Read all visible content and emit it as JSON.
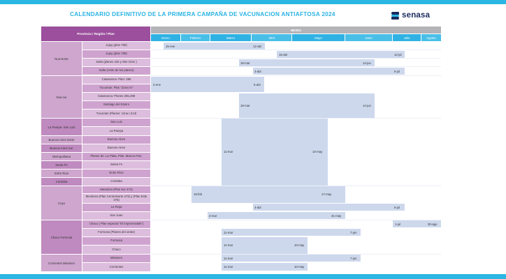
{
  "title": "CALENDARIO DEFINITIVO DE LA PRIMERA CAMPAÑA DE VACUNACION ANTIAFTOSA 2024",
  "logo": {
    "text": "senasa",
    "icon": "senasa-logo-icon"
  },
  "colors": {
    "accent": "#2bb6e3",
    "region": "#cea6ce",
    "province": "#ddbddd",
    "bar": "#cdd8ed",
    "header": "#9b4f9c"
  },
  "table": {
    "province_header": "Provincia / Región / Plan",
    "months_header": "MESES",
    "months": [
      "Enero",
      "Febrero",
      "Marzo",
      "Abril",
      "Mayo",
      "Junio",
      "Julio",
      "Agosto"
    ]
  },
  "regions": [
    {
      "name": "Noa Norte",
      "rows": [
        {
          "province": "Jujuy (plan 790)",
          "start": "15-ene",
          "end": "12-abr"
        },
        {
          "province": "Jujuy (plan 789)",
          "start": "15-abr",
          "end": "12-jul"
        },
        {
          "province": "Salta (planes 232 y 654 Oran )",
          "start": "18-mar",
          "end": "14-jun"
        },
        {
          "province": "Salta (resto de los planes)",
          "start": "3-abr",
          "end": "5-jul"
        }
      ]
    },
    {
      "name": "Noa sur",
      "rows": [
        {
          "province": "Catamarca- Plan: 296",
          "start": "2-ene",
          "end": "5-abr"
        },
        {
          "province": "Tucuman: Plan \"Zona IV\"",
          "start": "",
          "end": ""
        },
        {
          "province": "Catamarca: Planes 255,298",
          "start": "",
          "end": ""
        },
        {
          "province": "Santiago del Estero",
          "start": "18-mar",
          "end": "14-jun"
        },
        {
          "province": "Tucuman (Planes: zona I,II,III)",
          "start": "",
          "end": ""
        }
      ]
    },
    {
      "name": "La Pampa- San Luis",
      "rows": [
        {
          "province": "San Luis"
        },
        {
          "province": "La Pampa"
        }
      ]
    },
    {
      "name": "Buenos Aires Norte",
      "rows": [
        {
          "province": "Buenos Aires"
        }
      ]
    },
    {
      "name": "Buenos Aires Sur",
      "rows": [
        {
          "province": "Buenos Aires"
        }
      ]
    },
    {
      "name": "Metropolitana",
      "rows": [
        {
          "province": "Planes de: La Plata, Pilar, Marcos Paz."
        }
      ]
    },
    {
      "name": "Santa Fe",
      "rows": [
        {
          "province": "Santa Fe"
        }
      ]
    },
    {
      "name": "Entre Rios",
      "rows": [
        {
          "province": "Entre Ríos"
        }
      ]
    },
    {
      "name": "Córdoba",
      "rows": [
        {
          "province": "Córdoba"
        }
      ]
    },
    {
      "name": "Cuyo",
      "rows": [
        {
          "province": "Mendoza (Plan Sur 474)",
          "start": "19-feb",
          "end": "17-may"
        },
        {
          "province": "Mendoza (Plan CentroNorte 473) y (Plan Este 475)"
        },
        {
          "province": "La Rioja",
          "start": "3-abr",
          "end": "5-jul"
        },
        {
          "province": "San Juan",
          "start": "4-mar",
          "end": "31-may"
        }
      ]
    },
    {
      "name": "Chaco Formosa",
      "rows": [
        {
          "province": "Chaco ( Plan especial \"El Impenetrable\")",
          "start": "1-jul",
          "end": "30-ago"
        },
        {
          "province": "Formosa (Planes del oeste)",
          "start": "11-mar",
          "end": "7-jun"
        },
        {
          "province": "Formosa",
          "start": "11-mar",
          "end": "10-may"
        },
        {
          "province": "Chaco"
        }
      ]
    },
    {
      "name": "Corrientes Misiones",
      "rows": [
        {
          "province": "Misiones",
          "start": "11-mar",
          "end": "7-jun"
        },
        {
          "province": "Corrientes",
          "start": "11-mar",
          "end": "10-may"
        }
      ]
    }
  ],
  "central_block": {
    "start": "11-mar",
    "end": "10-may"
  }
}
